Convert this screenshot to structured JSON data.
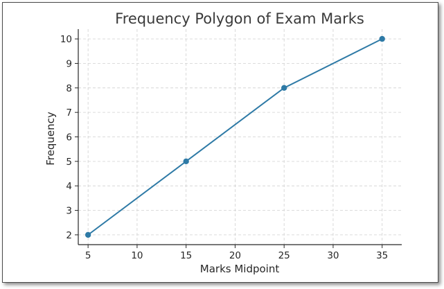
{
  "chart_data": {
    "type": "line",
    "title": "Frequency Polygon of Exam Marks",
    "xlabel": "Marks Midpoint",
    "ylabel": "Frequency",
    "x": [
      5,
      15,
      25,
      35
    ],
    "series": [
      {
        "values": [
          2,
          5,
          8,
          10
        ]
      }
    ],
    "xlim": [
      4,
      37
    ],
    "ylim": [
      1.6,
      10.4
    ],
    "xticks": [
      5,
      10,
      15,
      20,
      25,
      30,
      35
    ],
    "yticks": [
      2,
      3,
      4,
      5,
      6,
      7,
      8,
      9,
      10
    ],
    "grid": true,
    "line_color": "#2e7aa6",
    "marker_color": "#2e7aa6",
    "grid_color": "#d0d0d0"
  }
}
